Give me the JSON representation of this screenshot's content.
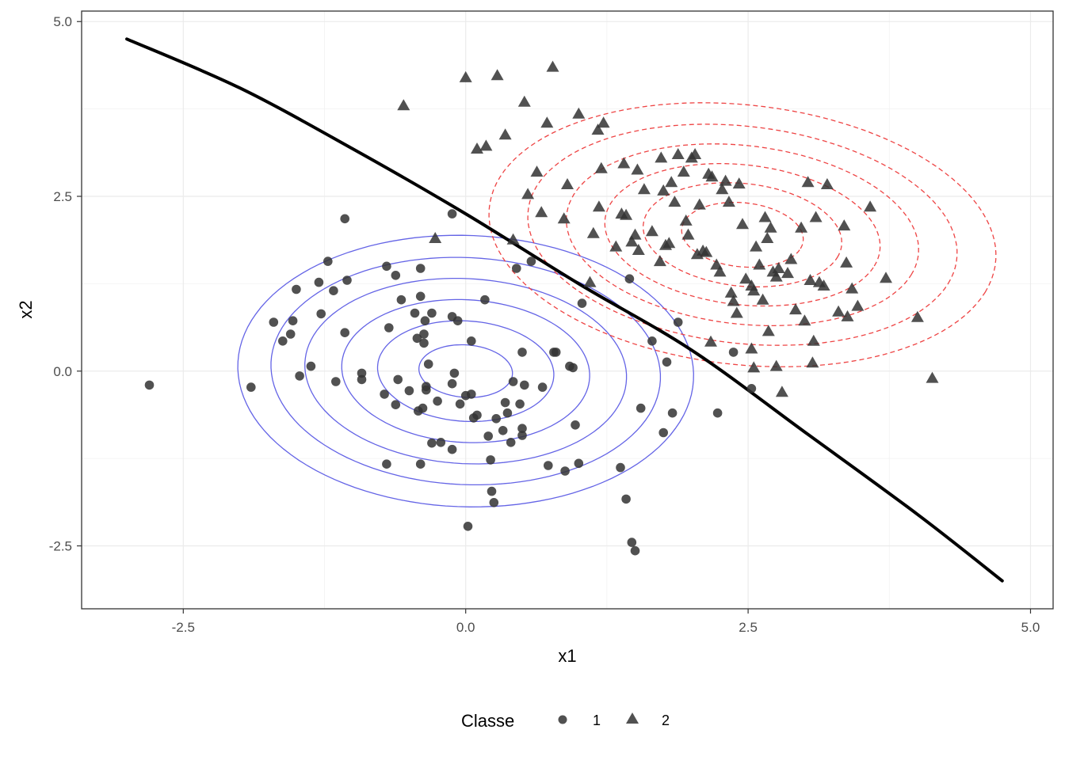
{
  "chart_data": {
    "type": "scatter",
    "xlabel": "x1",
    "ylabel": "x2",
    "xlim": [
      -3.4,
      5.2
    ],
    "ylim": [
      -3.4,
      5.15
    ],
    "x_ticks": [
      -2.5,
      0.0,
      2.5,
      5.0
    ],
    "x_tick_labels": [
      "-2.5",
      "0.0",
      "2.5",
      "5.0"
    ],
    "y_ticks": [
      -2.5,
      0.0,
      2.5,
      5.0
    ],
    "y_tick_labels": [
      "-2.5",
      "0.0",
      "2.5",
      "5.0"
    ],
    "grid": true,
    "legend": {
      "title": "Classe",
      "position": "bottom",
      "entries": [
        {
          "label": "1",
          "shape": "circle"
        },
        {
          "label": "2",
          "shape": "triangle"
        }
      ]
    },
    "series": [
      {
        "name": "1",
        "shape": "circle",
        "color": "#333333",
        "points": [
          [
            -2.8,
            -0.2
          ],
          [
            -1.9,
            -0.23
          ],
          [
            -1.7,
            0.7
          ],
          [
            -1.62,
            0.43
          ],
          [
            -1.55,
            0.53
          ],
          [
            -1.53,
            0.72
          ],
          [
            -1.5,
            1.17
          ],
          [
            -1.47,
            -0.07
          ],
          [
            -1.37,
            0.07
          ],
          [
            -1.3,
            1.27
          ],
          [
            -1.28,
            0.82
          ],
          [
            -1.22,
            1.57
          ],
          [
            -1.17,
            1.15
          ],
          [
            -1.15,
            -0.15
          ],
          [
            -1.07,
            2.18
          ],
          [
            -1.07,
            0.55
          ],
          [
            -1.05,
            1.3
          ],
          [
            -0.92,
            -0.03
          ],
          [
            -0.92,
            -0.12
          ],
          [
            -0.72,
            -0.33
          ],
          [
            -0.7,
            -1.33
          ],
          [
            -0.7,
            1.5
          ],
          [
            -0.68,
            0.62
          ],
          [
            -0.62,
            -0.48
          ],
          [
            -0.62,
            1.37
          ],
          [
            -0.6,
            -0.12
          ],
          [
            -0.57,
            1.02
          ],
          [
            -0.5,
            -0.28
          ],
          [
            -0.45,
            0.83
          ],
          [
            -0.43,
            0.47
          ],
          [
            -0.42,
            -0.57
          ],
          [
            -0.4,
            1.07
          ],
          [
            -0.4,
            1.47
          ],
          [
            -0.4,
            -1.33
          ],
          [
            -0.38,
            -0.53
          ],
          [
            -0.37,
            0.4
          ],
          [
            -0.37,
            0.53
          ],
          [
            -0.36,
            0.72
          ],
          [
            -0.35,
            -0.22
          ],
          [
            -0.35,
            -0.27
          ],
          [
            -0.33,
            0.1
          ],
          [
            -0.3,
            -1.03
          ],
          [
            -0.3,
            0.83
          ],
          [
            -0.25,
            -0.43
          ],
          [
            -0.22,
            -1.02
          ],
          [
            -0.12,
            -0.18
          ],
          [
            -0.12,
            -1.12
          ],
          [
            -0.12,
            0.78
          ],
          [
            -0.12,
            2.25
          ],
          [
            -0.1,
            -0.03
          ],
          [
            -0.07,
            0.72
          ],
          [
            -0.05,
            -0.47
          ],
          [
            0.0,
            -0.35
          ],
          [
            0.05,
            -0.33
          ],
          [
            0.05,
            0.43
          ],
          [
            0.07,
            -0.67
          ],
          [
            0.1,
            -0.63
          ],
          [
            0.17,
            1.02
          ],
          [
            0.2,
            -0.93
          ],
          [
            0.22,
            -1.27
          ],
          [
            0.23,
            -1.72
          ],
          [
            0.25,
            -1.88
          ],
          [
            0.27,
            -0.68
          ],
          [
            0.33,
            -0.85
          ],
          [
            0.35,
            -0.45
          ],
          [
            0.37,
            -0.6
          ],
          [
            0.4,
            -1.02
          ],
          [
            0.42,
            -0.15
          ],
          [
            0.45,
            1.47
          ],
          [
            0.48,
            -0.47
          ],
          [
            0.5,
            -0.82
          ],
          [
            0.5,
            -0.92
          ],
          [
            0.5,
            0.27
          ],
          [
            0.52,
            -0.2
          ],
          [
            0.58,
            1.57
          ],
          [
            0.68,
            -0.23
          ],
          [
            0.73,
            -1.35
          ],
          [
            0.78,
            0.27
          ],
          [
            0.8,
            0.27
          ],
          [
            0.88,
            -1.43
          ],
          [
            0.92,
            0.07
          ],
          [
            0.95,
            0.05
          ],
          [
            0.97,
            -0.77
          ],
          [
            1.0,
            -1.32
          ],
          [
            1.03,
            0.97
          ],
          [
            1.37,
            -1.38
          ],
          [
            1.42,
            -1.83
          ],
          [
            1.45,
            1.32
          ],
          [
            1.47,
            -2.45
          ],
          [
            1.5,
            -2.57
          ],
          [
            1.55,
            -0.53
          ],
          [
            1.65,
            0.43
          ],
          [
            1.75,
            -0.88
          ],
          [
            1.78,
            0.13
          ],
          [
            1.83,
            -0.6
          ],
          [
            1.88,
            0.7
          ],
          [
            2.23,
            -0.6
          ],
          [
            2.37,
            0.27
          ],
          [
            2.53,
            -0.25
          ],
          [
            0.02,
            -2.22
          ]
        ]
      },
      {
        "name": "2",
        "shape": "triangle",
        "color": "#333333",
        "points": [
          [
            -0.55,
            3.8
          ],
          [
            -0.27,
            1.9
          ],
          [
            0.0,
            4.2
          ],
          [
            0.1,
            3.18
          ],
          [
            0.18,
            3.22
          ],
          [
            0.28,
            4.23
          ],
          [
            0.35,
            3.38
          ],
          [
            0.42,
            1.88
          ],
          [
            0.52,
            3.85
          ],
          [
            0.55,
            2.53
          ],
          [
            0.63,
            2.85
          ],
          [
            0.67,
            2.27
          ],
          [
            0.72,
            3.55
          ],
          [
            0.77,
            4.35
          ],
          [
            0.87,
            2.18
          ],
          [
            0.9,
            2.67
          ],
          [
            1.0,
            3.68
          ],
          [
            1.1,
            1.27
          ],
          [
            1.13,
            1.97
          ],
          [
            1.17,
            3.45
          ],
          [
            1.2,
            2.9
          ],
          [
            1.22,
            3.55
          ],
          [
            1.33,
            1.78
          ],
          [
            1.38,
            2.25
          ],
          [
            1.4,
            2.97
          ],
          [
            1.42,
            2.23
          ],
          [
            1.47,
            1.85
          ],
          [
            1.5,
            1.95
          ],
          [
            1.52,
            2.88
          ],
          [
            1.53,
            1.73
          ],
          [
            1.58,
            2.6
          ],
          [
            1.65,
            2.0
          ],
          [
            1.72,
            1.57
          ],
          [
            1.73,
            3.05
          ],
          [
            1.75,
            2.58
          ],
          [
            1.77,
            1.8
          ],
          [
            1.8,
            1.83
          ],
          [
            1.82,
            2.7
          ],
          [
            1.85,
            2.42
          ],
          [
            1.88,
            3.1
          ],
          [
            1.93,
            2.85
          ],
          [
            1.95,
            2.15
          ],
          [
            1.97,
            1.95
          ],
          [
            2.0,
            3.05
          ],
          [
            2.03,
            3.1
          ],
          [
            2.05,
            1.67
          ],
          [
            2.07,
            2.38
          ],
          [
            2.1,
            1.72
          ],
          [
            2.13,
            1.7
          ],
          [
            2.15,
            2.82
          ],
          [
            2.18,
            2.78
          ],
          [
            2.22,
            1.52
          ],
          [
            2.25,
            1.42
          ],
          [
            2.27,
            2.6
          ],
          [
            2.3,
            2.72
          ],
          [
            2.33,
            2.42
          ],
          [
            2.35,
            1.12
          ],
          [
            2.37,
            1.0
          ],
          [
            2.4,
            0.83
          ],
          [
            2.42,
            2.68
          ],
          [
            2.45,
            2.1
          ],
          [
            2.48,
            1.32
          ],
          [
            2.53,
            1.22
          ],
          [
            2.55,
            1.15
          ],
          [
            2.57,
            1.78
          ],
          [
            2.6,
            1.52
          ],
          [
            2.63,
            1.02
          ],
          [
            2.65,
            2.2
          ],
          [
            2.67,
            1.9
          ],
          [
            2.7,
            2.05
          ],
          [
            2.72,
            1.42
          ],
          [
            2.75,
            1.35
          ],
          [
            2.77,
            1.47
          ],
          [
            2.85,
            1.4
          ],
          [
            2.88,
            1.6
          ],
          [
            2.92,
            0.88
          ],
          [
            2.97,
            2.05
          ],
          [
            3.0,
            0.72
          ],
          [
            3.03,
            2.7
          ],
          [
            3.05,
            1.3
          ],
          [
            3.08,
            0.43
          ],
          [
            3.1,
            2.2
          ],
          [
            3.13,
            1.27
          ],
          [
            3.17,
            1.22
          ],
          [
            3.2,
            2.67
          ],
          [
            3.3,
            0.85
          ],
          [
            3.35,
            2.08
          ],
          [
            3.37,
            1.55
          ],
          [
            3.38,
            0.78
          ],
          [
            3.42,
            1.18
          ],
          [
            3.47,
            0.93
          ],
          [
            3.58,
            2.35
          ],
          [
            3.72,
            1.33
          ],
          [
            4.0,
            0.77
          ],
          [
            4.13,
            -0.1
          ],
          [
            2.17,
            0.42
          ],
          [
            2.53,
            0.32
          ],
          [
            2.55,
            0.05
          ],
          [
            2.75,
            0.07
          ],
          [
            2.8,
            -0.3
          ],
          [
            3.07,
            0.12
          ],
          [
            1.18,
            2.35
          ],
          [
            2.68,
            0.57
          ]
        ]
      }
    ],
    "decision_boundary": {
      "style": "solid",
      "color": "#000000",
      "x": [
        -3.0,
        -2.0,
        -1.0,
        0.0,
        1.0,
        2.0,
        3.0,
        4.0,
        4.75
      ],
      "y": [
        4.75,
        4.05,
        3.18,
        2.25,
        1.25,
        0.3,
        -0.87,
        -2.05,
        -3.0
      ]
    },
    "density_contours": [
      {
        "class": "1",
        "color": "#6464e6",
        "style": "solid",
        "center": [
          0.0,
          0.0
        ],
        "radii_x": [
          0.42,
          0.79,
          1.11,
          1.44,
          1.74,
          2.03
        ],
        "radii_y": [
          0.37,
          0.71,
          1.01,
          1.31,
          1.61,
          1.93
        ],
        "rotation_deg": -21
      },
      {
        "class": "2",
        "color": "#ee4444",
        "style": "dashed",
        "center": [
          2.45,
          1.95
        ],
        "radii_x": [
          0.55,
          0.9,
          1.25,
          1.6,
          1.95,
          2.3
        ],
        "radii_y": [
          0.45,
          0.72,
          0.98,
          1.25,
          1.52,
          1.82
        ],
        "rotation_deg": -21
      }
    ]
  }
}
